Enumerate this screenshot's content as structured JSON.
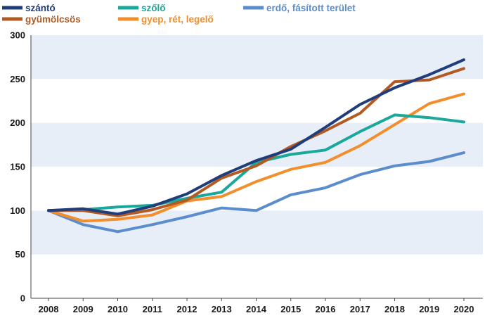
{
  "chart_data": {
    "type": "line",
    "title": "",
    "xlabel": "",
    "ylabel": "",
    "x": [
      "2008",
      "2009",
      "2010",
      "2011",
      "2012",
      "2013",
      "2014",
      "2015",
      "2016",
      "2017",
      "2018",
      "2019",
      "2020"
    ],
    "ylim": [
      0,
      300
    ],
    "yticks": [
      "0",
      "50",
      "100",
      "150",
      "200",
      "250",
      "300"
    ],
    "grid": "banded",
    "band_color": "#e8eef8",
    "legend_position": "top",
    "series": [
      {
        "name": "szántó",
        "color": "#1f3d7a",
        "values": [
          100,
          102,
          96,
          105,
          119,
          140,
          157,
          170,
          195,
          221,
          240,
          255,
          272
        ]
      },
      {
        "name": "szőlő",
        "color": "#1aa89a",
        "values": [
          100,
          101,
          104,
          106,
          114,
          121,
          155,
          164,
          169,
          190,
          209,
          206,
          201
        ]
      },
      {
        "name": "erdő, fásított terület",
        "color": "#5b8ccc",
        "values": [
          100,
          84,
          76,
          84,
          93,
          103,
          100,
          118,
          126,
          141,
          151,
          156,
          166
        ]
      },
      {
        "name": "gyümölcsös",
        "color": "#b35a22",
        "values": [
          100,
          100,
          94,
          101,
          112,
          137,
          151,
          173,
          191,
          211,
          247,
          249,
          262
        ]
      },
      {
        "name": "gyep, rét, legelő",
        "color": "#f28e2b",
        "values": [
          100,
          88,
          90,
          95,
          111,
          116,
          133,
          147,
          155,
          174,
          198,
          222,
          233
        ]
      }
    ]
  }
}
